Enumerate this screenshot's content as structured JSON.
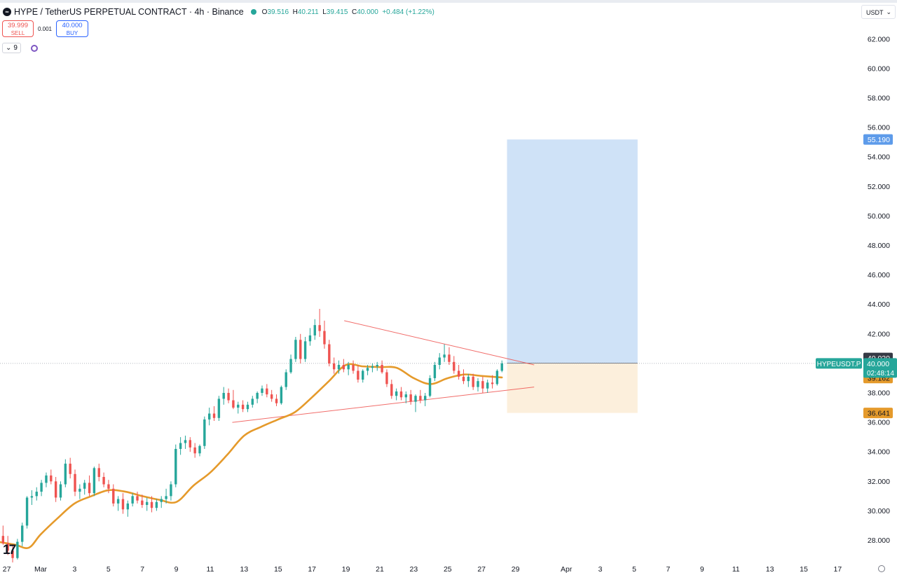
{
  "header": {
    "symbol": "HYPE / TetherUS PERPETUAL CONTRACT · 4h · Binance",
    "open_label": "O",
    "open": "39.516",
    "high_label": "H",
    "high": "40.211",
    "low_label": "L",
    "low": "39.415",
    "close_label": "C",
    "close": "40.000",
    "change": "+0.484 (+1.22%)"
  },
  "trade": {
    "sell_price": "39.999",
    "sell_label": "SELL",
    "spread": "0.001",
    "buy_price": "40.000",
    "buy_label": "BUY"
  },
  "indicators": {
    "count": "9"
  },
  "currency_select": "USDT",
  "colors": {
    "up": "#26a69a",
    "down": "#ef5350",
    "ema": "#e59a2b",
    "target_zone": "#cfe2f7",
    "stop_zone": "#fcefdc",
    "trendline": "#ef5350",
    "price_tag": "#26a69a",
    "label_tag": "#e59a2b",
    "target_tag": "#5d9bea"
  },
  "chart_data": {
    "type": "candlestick",
    "symbol_label": "HYPEUSDT.P",
    "timeframe": "4h",
    "ylim": [
      26.5,
      63.5
    ],
    "y_ticks": [
      "62.000",
      "60.000",
      "58.000",
      "56.000",
      "54.000",
      "52.000",
      "50.000",
      "48.000",
      "46.000",
      "44.000",
      "42.000",
      "40.000",
      "38.000",
      "36.000",
      "34.000",
      "32.000",
      "30.000",
      "28.000"
    ],
    "x_ticks": [
      {
        "label": "27",
        "day": -1
      },
      {
        "label": "Mar",
        "day": 1
      },
      {
        "label": "3",
        "day": 3
      },
      {
        "label": "5",
        "day": 5
      },
      {
        "label": "7",
        "day": 7
      },
      {
        "label": "9",
        "day": 9
      },
      {
        "label": "11",
        "day": 11
      },
      {
        "label": "13",
        "day": 13
      },
      {
        "label": "15",
        "day": 15
      },
      {
        "label": "17",
        "day": 17
      },
      {
        "label": "19",
        "day": 19
      },
      {
        "label": "21",
        "day": 21
      },
      {
        "label": "23",
        "day": 23
      },
      {
        "label": "25",
        "day": 25
      },
      {
        "label": "27",
        "day": 27
      },
      {
        "label": "29",
        "day": 29
      },
      {
        "label": "Apr",
        "day": 32
      },
      {
        "label": "3",
        "day": 34
      },
      {
        "label": "5",
        "day": 36
      },
      {
        "label": "7",
        "day": 38
      },
      {
        "label": "9",
        "day": 40
      },
      {
        "label": "11",
        "day": 42
      },
      {
        "label": "13",
        "day": 44
      },
      {
        "label": "15",
        "day": 46
      },
      {
        "label": "17",
        "day": 48
      }
    ],
    "price_line": {
      "value": 40.0,
      "label": "40.000",
      "countdown": "02:48:14"
    },
    "ema_value": {
      "value": 39.162,
      "label": "39.162"
    },
    "position": {
      "entry": 40.02,
      "entry_label": "40.020",
      "target": 55.19,
      "target_label": "55.190",
      "stop": 36.641,
      "stop_label": "36.641",
      "start_day": 28.5,
      "end_day": 36.2
    },
    "trendlines": [
      {
        "name": "upper-trendline",
        "points": [
          [
            18.9,
            42.9
          ],
          [
            30.1,
            39.9
          ]
        ]
      },
      {
        "name": "lower-trendline",
        "points": [
          [
            12.3,
            36.0
          ],
          [
            30.1,
            38.4
          ]
        ]
      }
    ],
    "ema_anchors": [
      [
        -1.5,
        27.9
      ],
      [
        -0.5,
        27.7
      ],
      [
        0.3,
        27.5
      ],
      [
        1,
        28.4
      ],
      [
        2,
        29.5
      ],
      [
        3,
        30.5
      ],
      [
        4,
        31.0
      ],
      [
        5,
        31.4
      ],
      [
        6,
        31.3
      ],
      [
        7,
        31.0
      ],
      [
        8,
        30.75
      ],
      [
        9,
        30.6
      ],
      [
        10,
        31.7
      ],
      [
        11,
        32.6
      ],
      [
        12,
        33.8
      ],
      [
        13,
        35.1
      ],
      [
        14,
        35.7
      ],
      [
        15,
        36.2
      ],
      [
        16,
        36.7
      ],
      [
        17,
        37.7
      ],
      [
        18,
        38.8
      ],
      [
        19,
        39.9
      ],
      [
        20,
        39.8
      ],
      [
        21,
        39.75
      ],
      [
        22,
        39.7
      ],
      [
        23,
        39.0
      ],
      [
        24,
        38.6
      ],
      [
        25,
        39.0
      ],
      [
        26,
        39.25
      ],
      [
        27,
        39.15
      ],
      [
        28.2,
        39.05
      ]
    ],
    "candles": [
      [
        27.9,
        28.4,
        27.8,
        28.3
      ],
      [
        28.3,
        29.0,
        27.7,
        27.8
      ],
      [
        27.8,
        28.3,
        27.0,
        27.3
      ],
      [
        27.3,
        27.7,
        26.5,
        26.8
      ],
      [
        26.8,
        28.1,
        26.7,
        27.9
      ],
      [
        27.9,
        29.2,
        27.6,
        29.0
      ],
      [
        29.0,
        31.0,
        28.8,
        30.9
      ],
      [
        30.9,
        31.4,
        30.4,
        31.0
      ],
      [
        31.0,
        31.6,
        30.7,
        31.3
      ],
      [
        31.3,
        32.1,
        31.0,
        31.9
      ],
      [
        31.9,
        32.6,
        31.6,
        32.4
      ],
      [
        32.4,
        32.8,
        31.8,
        32.0
      ],
      [
        32.0,
        32.3,
        30.6,
        30.9
      ],
      [
        30.9,
        32.0,
        30.7,
        31.8
      ],
      [
        31.8,
        33.5,
        31.6,
        33.2
      ],
      [
        33.2,
        33.6,
        32.2,
        32.5
      ],
      [
        32.5,
        32.8,
        31.0,
        31.3
      ],
      [
        31.3,
        31.8,
        30.8,
        31.5
      ],
      [
        31.5,
        32.1,
        31.1,
        31.9
      ],
      [
        31.9,
        32.4,
        31.0,
        31.2
      ],
      [
        31.2,
        33.0,
        31.0,
        32.9
      ],
      [
        32.9,
        33.2,
        32.0,
        32.3
      ],
      [
        32.3,
        32.6,
        31.6,
        31.8
      ],
      [
        31.8,
        32.1,
        31.2,
        31.5
      ],
      [
        31.5,
        31.8,
        30.3,
        30.5
      ],
      [
        30.5,
        31.0,
        30.0,
        30.8
      ],
      [
        30.8,
        31.2,
        29.8,
        30.1
      ],
      [
        30.1,
        30.7,
        29.6,
        30.5
      ],
      [
        30.5,
        31.2,
        30.3,
        31.0
      ],
      [
        31.0,
        31.3,
        30.5,
        30.7
      ],
      [
        30.7,
        31.1,
        30.2,
        30.4
      ],
      [
        30.4,
        30.9,
        30.0,
        30.6
      ],
      [
        30.6,
        31.0,
        29.9,
        30.2
      ],
      [
        30.2,
        30.8,
        30.0,
        30.6
      ],
      [
        30.6,
        31.0,
        30.2,
        30.8
      ],
      [
        30.8,
        31.5,
        30.5,
        31.0
      ],
      [
        31.0,
        32.0,
        30.7,
        31.8
      ],
      [
        31.8,
        34.5,
        31.6,
        34.2
      ],
      [
        34.2,
        35.0,
        33.8,
        34.6
      ],
      [
        34.6,
        35.1,
        34.2,
        34.8
      ],
      [
        34.8,
        35.0,
        34.0,
        34.3
      ],
      [
        34.3,
        34.6,
        33.6,
        33.9
      ],
      [
        33.9,
        34.5,
        33.7,
        34.4
      ],
      [
        34.4,
        36.4,
        34.2,
        36.2
      ],
      [
        36.2,
        37.0,
        35.8,
        36.6
      ],
      [
        36.6,
        37.1,
        36.1,
        36.3
      ],
      [
        36.3,
        37.8,
        36.1,
        37.6
      ],
      [
        37.6,
        38.4,
        37.2,
        38.0
      ],
      [
        38.0,
        38.3,
        37.3,
        37.5
      ],
      [
        37.5,
        38.2,
        36.9,
        37.0
      ],
      [
        37.0,
        37.4,
        36.6,
        37.2
      ],
      [
        37.2,
        37.5,
        36.7,
        36.9
      ],
      [
        36.9,
        37.4,
        36.7,
        37.2
      ],
      [
        37.2,
        37.8,
        37.0,
        37.6
      ],
      [
        37.6,
        38.1,
        37.3,
        38.0
      ],
      [
        38.0,
        38.5,
        37.8,
        38.3
      ],
      [
        38.3,
        38.6,
        37.7,
        37.9
      ],
      [
        37.9,
        38.2,
        37.4,
        37.6
      ],
      [
        37.6,
        37.9,
        37.1,
        37.3
      ],
      [
        37.3,
        38.5,
        37.2,
        38.4
      ],
      [
        38.4,
        39.6,
        38.2,
        39.4
      ],
      [
        39.4,
        40.6,
        39.3,
        40.3
      ],
      [
        40.3,
        41.8,
        40.1,
        41.6
      ],
      [
        41.6,
        42.0,
        40.0,
        40.3
      ],
      [
        40.3,
        41.8,
        40.1,
        41.5
      ],
      [
        41.5,
        42.4,
        41.2,
        41.9
      ],
      [
        41.9,
        43.0,
        41.6,
        42.6
      ],
      [
        42.6,
        43.7,
        41.8,
        42.2
      ],
      [
        42.2,
        42.9,
        41.0,
        41.3
      ],
      [
        41.3,
        41.6,
        39.8,
        40.0
      ],
      [
        40.0,
        40.4,
        39.3,
        39.6
      ],
      [
        39.6,
        40.2,
        39.3,
        39.9
      ],
      [
        39.9,
        40.3,
        39.4,
        39.6
      ],
      [
        39.6,
        40.1,
        39.2,
        39.9
      ],
      [
        39.9,
        40.2,
        39.3,
        39.5
      ],
      [
        39.5,
        39.9,
        38.7,
        38.9
      ],
      [
        38.9,
        39.6,
        38.7,
        39.5
      ],
      [
        39.5,
        39.9,
        39.2,
        39.7
      ],
      [
        39.7,
        40.0,
        39.4,
        39.8
      ],
      [
        39.8,
        40.1,
        39.5,
        39.9
      ],
      [
        39.9,
        40.2,
        39.3,
        39.4
      ],
      [
        39.4,
        39.6,
        38.4,
        38.6
      ],
      [
        38.6,
        38.9,
        37.6,
        37.8
      ],
      [
        37.8,
        38.3,
        37.5,
        38.1
      ],
      [
        38.1,
        38.4,
        37.5,
        37.7
      ],
      [
        37.7,
        38.1,
        37.3,
        37.9
      ],
      [
        37.9,
        38.2,
        37.2,
        37.4
      ],
      [
        37.4,
        37.9,
        36.7,
        37.8
      ],
      [
        37.8,
        38.2,
        37.3,
        37.5
      ],
      [
        37.5,
        38.0,
        37.1,
        37.8
      ],
      [
        37.8,
        39.2,
        37.7,
        39.0
      ],
      [
        39.0,
        40.1,
        38.8,
        39.9
      ],
      [
        39.9,
        40.7,
        39.6,
        40.4
      ],
      [
        40.4,
        41.3,
        40.1,
        40.6
      ],
      [
        40.6,
        41.1,
        39.9,
        40.1
      ],
      [
        40.1,
        40.5,
        39.3,
        39.5
      ],
      [
        39.5,
        39.9,
        38.9,
        39.1
      ],
      [
        39.1,
        39.6,
        38.6,
        38.8
      ],
      [
        38.8,
        39.3,
        38.4,
        39.1
      ],
      [
        39.1,
        39.3,
        38.2,
        38.4
      ],
      [
        38.4,
        39.0,
        38.1,
        38.8
      ],
      [
        38.8,
        39.1,
        38.0,
        38.3
      ],
      [
        38.3,
        38.9,
        38.0,
        38.7
      ],
      [
        38.7,
        39.2,
        38.3,
        38.6
      ],
      [
        38.6,
        39.6,
        38.5,
        39.5
      ],
      [
        39.5,
        40.2,
        39.4,
        40.0
      ]
    ]
  }
}
